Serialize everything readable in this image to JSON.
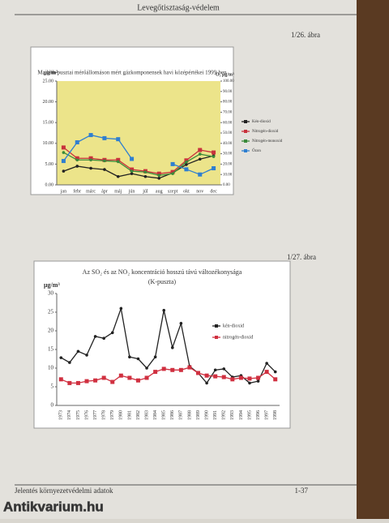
{
  "page": {
    "header": "Levegőtisztaság-védelem",
    "figure_1": "1/26. ábra",
    "figure_2": "1/27. ábra",
    "footer": "Jelentés környezetvédelmi adatok",
    "page_number": "1-37",
    "watermark": "Antikvarium.hu"
  },
  "chart_data": [
    {
      "type": "line",
      "title": "Majláth-pusztai mérőállomáson mért gázkomponensek havi középértékei 1999-ben",
      "y_label": "μg/m³",
      "y2_label": "O₃ μg/m³",
      "categories": [
        "jan",
        "febr",
        "márc",
        "ápr",
        "máj",
        "jún",
        "júl",
        "aug",
        "szept",
        "okt",
        "nov",
        "dec"
      ],
      "series": [
        {
          "name": "Kén-dioxid",
          "color": "#222222",
          "values": [
            3.3,
            4.5,
            4,
            3.7,
            2,
            2.7,
            2,
            1.6,
            2.9,
            4.9,
            6.2,
            7
          ]
        },
        {
          "name": "Nitrogén-dioxid",
          "color": "#c8323c",
          "values": [
            9,
            6.4,
            6.4,
            6,
            6,
            3.7,
            3.3,
            2.7,
            3.1,
            5.9,
            8.4,
            7.8
          ]
        },
        {
          "name": "Nitrogén-monoxid",
          "color": "#3a8a3a",
          "values": [
            7.8,
            6,
            6,
            5.8,
            5.6,
            3.3,
            3.1,
            2.3,
            2.7,
            5.5,
            7.4,
            6.8
          ]
        },
        {
          "name": "Ózon",
          "color": "#2f7fd0",
          "axis": "y2",
          "values": [
            23,
            41,
            48,
            45,
            44,
            25,
            null,
            null,
            20,
            15,
            10,
            16
          ]
        }
      ],
      "ylim": [
        0,
        25
      ],
      "yticks": [
        {
          "value": 0,
          "label": "0.00"
        },
        {
          "value": 5,
          "label": "5.00"
        },
        {
          "value": 10,
          "label": "10.00"
        },
        {
          "value": 15,
          "label": "15.00"
        },
        {
          "value": 20,
          "label": "20.00"
        },
        {
          "value": 25,
          "label": "25.00"
        }
      ],
      "y2lim": [
        0,
        100
      ],
      "y2ticks": [
        {
          "value": 0,
          "label": "0.00"
        },
        {
          "value": 10,
          "label": "10.00"
        },
        {
          "value": 20,
          "label": "20.00"
        },
        {
          "value": 30,
          "label": "30.00"
        },
        {
          "value": 40,
          "label": "40.00"
        },
        {
          "value": 50,
          "label": "50.00"
        },
        {
          "value": 60,
          "label": "60.00"
        },
        {
          "value": 70,
          "label": "70.00"
        },
        {
          "value": 80,
          "label": "80.00"
        },
        {
          "value": 90,
          "label": "90.00"
        },
        {
          "value": 100,
          "label": "100.00"
        }
      ],
      "plot_color": "#ece48a",
      "legend": "right"
    },
    {
      "type": "line",
      "title": "Az SO₂ és az NO₂ koncentráció hosszú távú változékonysága",
      "subtitle": "(K-puszta)",
      "y_label": "μg/m³",
      "categories": [
        "1973",
        "1974",
        "1975",
        "1976",
        "1977",
        "1978",
        "1979",
        "1980",
        "1981",
        "1982",
        "1983",
        "1984",
        "1985",
        "1986",
        "1987",
        "1988",
        "1989",
        "1990",
        "1991",
        "1992",
        "1993",
        "1994",
        "1995",
        "1996",
        "1997",
        "1998"
      ],
      "series": [
        {
          "name": "kén-dioxid",
          "color": "#222222",
          "values": [
            12.8,
            11.5,
            14.5,
            13.5,
            18.5,
            18,
            19.5,
            26,
            13,
            12.5,
            10,
            13,
            25.5,
            15.5,
            22,
            10.5,
            8.7,
            6,
            9.5,
            9.8,
            7.6,
            8,
            6,
            6.5,
            11.3,
            9
          ]
        },
        {
          "name": "nitrogén-dioxid",
          "color": "#d03040",
          "values": [
            7,
            6,
            6,
            6.5,
            6.7,
            7.4,
            6.3,
            8,
            7.4,
            6.7,
            7.4,
            9,
            9.8,
            9.5,
            9.5,
            10.2,
            8.7,
            8,
            7.8,
            7.6,
            7,
            7.4,
            7.2,
            7.4,
            9,
            7
          ]
        }
      ],
      "ylim": [
        0,
        30
      ],
      "yticks": [
        0,
        5,
        10,
        15,
        20,
        25,
        30
      ],
      "plot_color": "#ffffff",
      "legend": "right"
    }
  ]
}
